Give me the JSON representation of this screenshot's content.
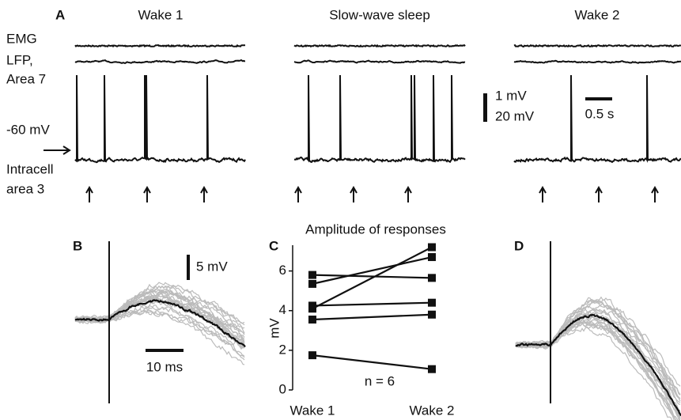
{
  "panel_a": {
    "label": "A",
    "titles": [
      "Wake 1",
      "Slow-wave sleep",
      "Wake 2"
    ],
    "row_labels": [
      "EMG",
      "LFP,",
      "Area 7",
      "-60 mV",
      "Intracell",
      "area 3"
    ],
    "scale_v1": "1 mV",
    "scale_v2": "20 mV",
    "scale_t": "0.5 s"
  },
  "panel_b": {
    "label": "B",
    "scale_v": "5 mV",
    "scale_t": "10 ms"
  },
  "panel_d": {
    "label": "D"
  },
  "chart_data": {
    "type": "line",
    "label": "C",
    "title": "Amplitude of responses",
    "y_label": "mV",
    "annotation": "n = 6",
    "categories": [
      "Wake 1",
      "Wake 2"
    ],
    "color": "#111",
    "series": [
      {
        "values": [
          5.8,
          5.65
        ]
      },
      {
        "values": [
          5.35,
          6.7
        ]
      },
      {
        "values": [
          4.1,
          7.2
        ]
      },
      {
        "values": [
          4.25,
          4.4
        ]
      },
      {
        "values": [
          3.55,
          3.8
        ]
      },
      {
        "values": [
          1.75,
          1.05
        ]
      }
    ],
    "ylim": [
      0,
      7.3
    ],
    "yticks": [
      0,
      2,
      4,
      6
    ]
  }
}
